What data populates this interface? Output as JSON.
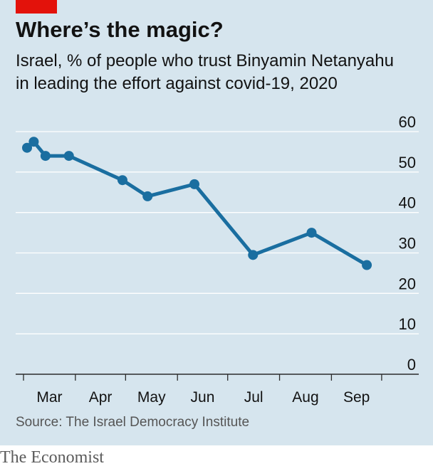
{
  "header": {
    "title": "Where’s the magic?",
    "subtitle_line1": "Israel, % of people who trust Binyamin Netanyahu",
    "subtitle_line2": "in leading the effort against covid-19, 2020"
  },
  "footer": {
    "source": "Source: The Israel Democracy Institute",
    "brand": "The Economist"
  },
  "colors": {
    "accent": "#e3120b",
    "line": "#1a6ea0",
    "background": "#d6e5ee",
    "gridline": "#ffffff"
  },
  "chart_data": {
    "type": "line",
    "title": "Where’s the magic?",
    "subtitle": "Israel, % of people who trust Binyamin Netanyahu in leading the effort against covid-19, 2020",
    "x_tick_labels": [
      "Mar",
      "Apr",
      "May",
      "Jun",
      "Jul",
      "Aug",
      "Sep"
    ],
    "y_ticks": [
      0,
      10,
      20,
      30,
      40,
      50,
      60
    ],
    "ylim": [
      0,
      60
    ],
    "grid": true,
    "y_axis_side": "right",
    "series": [
      {
        "x": [
          "2020-03-01",
          "2020-03-05",
          "2020-03-12",
          "2020-03-26",
          "2020-04-27",
          "2020-05-12",
          "2020-06-09",
          "2020-07-14",
          "2020-08-18",
          "2020-09-20"
        ],
        "y": [
          56,
          57.5,
          54,
          54,
          48,
          44,
          47,
          29.5,
          35,
          27
        ]
      }
    ]
  }
}
